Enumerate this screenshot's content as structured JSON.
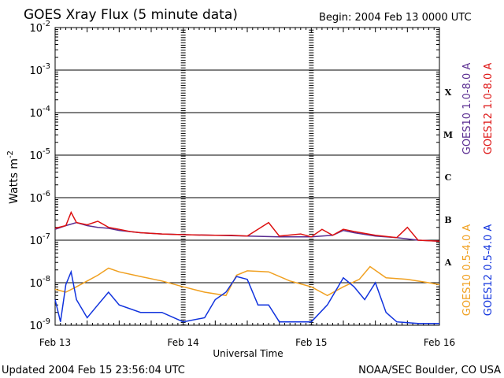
{
  "title": "GOES Xray Flux (5 minute data)",
  "begin_label": "Begin:  2004 Feb 13 0000 UTC",
  "updated_label": "Updated 2004 Feb 15 23:56:04 UTC",
  "credit_label": "NOAA/SEC Boulder, CO USA",
  "chart_data": {
    "type": "line",
    "title": "GOES Xray Flux (5 minute data)",
    "xlabel": "Universal Time",
    "ylabel": "Watts m",
    "ylabel_superscript": "-2",
    "yscale": "log",
    "ylim": [
      1e-09,
      0.01
    ],
    "xlim": [
      "2004-02-13 00:00",
      "2004-02-16 00:00"
    ],
    "grid": true,
    "y_tick_labels": [
      {
        "value": 0.01,
        "base": "10",
        "exp": "-2"
      },
      {
        "value": 0.001,
        "base": "10",
        "exp": "-3"
      },
      {
        "value": 0.0001,
        "base": "10",
        "exp": "-4"
      },
      {
        "value": 1e-05,
        "base": "10",
        "exp": "-5"
      },
      {
        "value": 1e-06,
        "base": "10",
        "exp": "-6"
      },
      {
        "value": 1e-07,
        "base": "10",
        "exp": "-7"
      },
      {
        "value": 1e-08,
        "base": "10",
        "exp": "-8"
      },
      {
        "value": 1e-09,
        "base": "10",
        "exp": "-9"
      }
    ],
    "x_tick_labels": [
      {
        "value": "2004-02-13 00:00",
        "label": "Feb 13"
      },
      {
        "value": "2004-02-14 00:00",
        "label": "Feb 14"
      },
      {
        "value": "2004-02-15 00:00",
        "label": "Feb 15"
      },
      {
        "value": "2004-02-16 00:00",
        "label": "Feb 16"
      }
    ],
    "flare_classes": [
      {
        "label": "X",
        "value": 0.0003
      },
      {
        "label": "M",
        "value": 3e-05
      },
      {
        "label": "C",
        "value": 3e-06
      },
      {
        "label": "B",
        "value": 3e-07
      },
      {
        "label": "A",
        "value": 3e-08
      }
    ],
    "series": [
      {
        "name": "GOES10 1.0-8.0 A",
        "color": "#5a2d91",
        "x": [
          "2004-02-13 00:00",
          "2004-02-13 02:00",
          "2004-02-13 04:00",
          "2004-02-13 06:00",
          "2004-02-13 08:00",
          "2004-02-13 10:00",
          "2004-02-13 12:00",
          "2004-02-13 16:00",
          "2004-02-13 20:00",
          "2004-02-14 00:00",
          "2004-02-14 06:00",
          "2004-02-14 12:00",
          "2004-02-14 18:00",
          "2004-02-15 00:00",
          "2004-02-15 04:00",
          "2004-02-15 06:00",
          "2004-02-15 08:00",
          "2004-02-15 12:00",
          "2004-02-15 16:00",
          "2004-02-15 20:00",
          "2004-02-16 00:00"
        ],
        "y": [
          1.8e-07,
          2.2e-07,
          2.6e-07,
          2.2e-07,
          2e-07,
          1.9e-07,
          1.7e-07,
          1.5e-07,
          1.4e-07,
          1.35e-07,
          1.3e-07,
          1.25e-07,
          1.2e-07,
          1.2e-07,
          1.3e-07,
          1.7e-07,
          1.5e-07,
          1.25e-07,
          1.15e-07,
          1e-07,
          9.5e-08
        ]
      },
      {
        "name": "GOES12 1.0-8.0 A",
        "color": "#dd1111",
        "x": [
          "2004-02-13 00:00",
          "2004-02-13 02:00",
          "2004-02-13 03:00",
          "2004-02-13 04:00",
          "2004-02-13 06:00",
          "2004-02-13 08:00",
          "2004-02-13 10:00",
          "2004-02-13 12:00",
          "2004-02-13 14:00",
          "2004-02-13 16:00",
          "2004-02-13 20:00",
          "2004-02-14 00:00",
          "2004-02-14 06:00",
          "2004-02-14 09:00",
          "2004-02-14 12:00",
          "2004-02-14 16:00",
          "2004-02-14 18:00",
          "2004-02-14 22:00",
          "2004-02-15 00:00",
          "2004-02-15 02:00",
          "2004-02-15 04:00",
          "2004-02-15 06:00",
          "2004-02-15 08:00",
          "2004-02-15 12:00",
          "2004-02-15 16:00",
          "2004-02-15 18:00",
          "2004-02-15 20:00",
          "2004-02-16 00:00"
        ],
        "y": [
          1.9e-07,
          2.2e-07,
          4.5e-07,
          2.6e-07,
          2.3e-07,
          2.8e-07,
          2e-07,
          1.8e-07,
          1.6e-07,
          1.5e-07,
          1.4e-07,
          1.35e-07,
          1.3e-07,
          1.3e-07,
          1.25e-07,
          2.6e-07,
          1.25e-07,
          1.4e-07,
          1.2e-07,
          1.8e-07,
          1.3e-07,
          1.8e-07,
          1.6e-07,
          1.3e-07,
          1.15e-07,
          2e-07,
          1e-07,
          9.5e-08
        ]
      },
      {
        "name": "GOES10 0.5-4.0 A",
        "color": "#f0a020",
        "x": [
          "2004-02-13 00:00",
          "2004-02-13 02:00",
          "2004-02-13 04:00",
          "2004-02-13 06:00",
          "2004-02-13 08:00",
          "2004-02-13 10:00",
          "2004-02-13 12:00",
          "2004-02-13 16:00",
          "2004-02-13 20:00",
          "2004-02-14 00:00",
          "2004-02-14 04:00",
          "2004-02-14 08:00",
          "2004-02-14 10:00",
          "2004-02-14 12:00",
          "2004-02-14 16:00",
          "2004-02-14 20:00",
          "2004-02-15 00:00",
          "2004-02-15 03:00",
          "2004-02-15 06:00",
          "2004-02-15 09:00",
          "2004-02-15 11:00",
          "2004-02-15 14:00",
          "2004-02-15 18:00",
          "2004-02-15 22:00",
          "2004-02-16 00:00"
        ],
        "y": [
          7e-09,
          6e-09,
          8e-09,
          1.1e-08,
          1.5e-08,
          2.2e-08,
          1.8e-08,
          1.4e-08,
          1.1e-08,
          8e-09,
          6e-09,
          5e-09,
          1.5e-08,
          1.9e-08,
          1.8e-08,
          1.1e-08,
          8e-09,
          5e-09,
          8e-09,
          1.2e-08,
          2.4e-08,
          1.3e-08,
          1.2e-08,
          1e-08,
          9e-09
        ]
      },
      {
        "name": "GOES12 0.5-4.0 A",
        "color": "#1133dd",
        "x": [
          "2004-02-13 00:00",
          "2004-02-13 01:00",
          "2004-02-13 02:00",
          "2004-02-13 03:00",
          "2004-02-13 04:00",
          "2004-02-13 06:00",
          "2004-02-13 08:00",
          "2004-02-13 10:00",
          "2004-02-13 12:00",
          "2004-02-13 16:00",
          "2004-02-13 20:00",
          "2004-02-14 00:00",
          "2004-02-14 04:00",
          "2004-02-14 06:00",
          "2004-02-14 08:00",
          "2004-02-14 10:00",
          "2004-02-14 12:00",
          "2004-02-14 14:00",
          "2004-02-14 16:00",
          "2004-02-14 18:00",
          "2004-02-15 00:00",
          "2004-02-15 03:00",
          "2004-02-15 06:00",
          "2004-02-15 08:00",
          "2004-02-15 10:00",
          "2004-02-15 12:00",
          "2004-02-15 14:00",
          "2004-02-15 16:00",
          "2004-02-15 20:00",
          "2004-02-16 00:00"
        ],
        "y": [
          4e-09,
          1.2e-09,
          9e-09,
          1.8e-08,
          4e-09,
          1.5e-09,
          3e-09,
          6e-09,
          3e-09,
          2e-09,
          2e-09,
          1.2e-09,
          1.5e-09,
          4e-09,
          6e-09,
          1.4e-08,
          1.2e-08,
          3e-09,
          3e-09,
          1.2e-09,
          1.2e-09,
          3e-09,
          1.3e-08,
          8e-09,
          4e-09,
          1e-08,
          2e-09,
          1.2e-09,
          1.1e-09,
          1.1e-09
        ]
      }
    ]
  }
}
